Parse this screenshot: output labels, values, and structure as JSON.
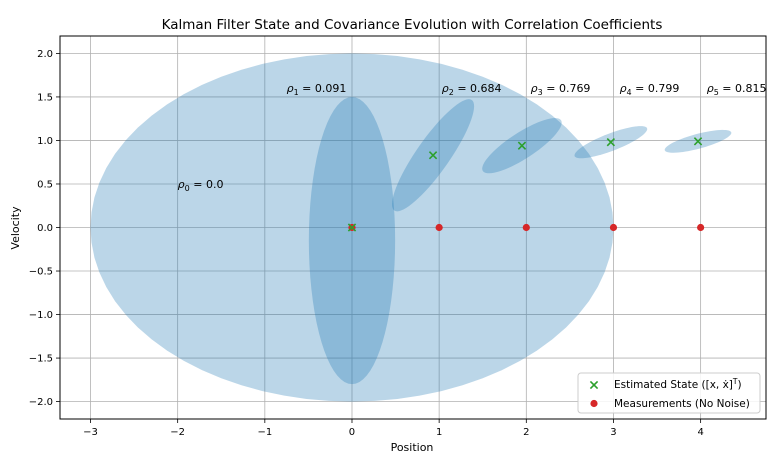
{
  "chart_data": {
    "type": "scatter",
    "title": "Kalman Filter State and Covariance Evolution with Correlation Coefficients",
    "xlabel": "Position",
    "ylabel": "Velocity",
    "xlim": [
      -3.35,
      4.75
    ],
    "ylim": [
      -2.2,
      2.2
    ],
    "xticks": [
      -3,
      -2,
      -1,
      0,
      1,
      2,
      3,
      4
    ],
    "yticks": [
      -2.0,
      -1.5,
      -1.0,
      -0.5,
      0.0,
      0.5,
      1.0,
      1.5,
      2.0
    ],
    "xtick_labels": [
      "−3",
      "−2",
      "−1",
      "0",
      "1",
      "2",
      "3",
      "4"
    ],
    "ytick_labels": [
      "−2.0",
      "−1.5",
      "−1.0",
      "−0.5",
      "0.0",
      "0.5",
      "1.0",
      "1.5",
      "2.0"
    ],
    "grid": true,
    "legend_position": "bottom-right",
    "colors": {
      "estimate": "#2ca02c",
      "measurement": "#d62728",
      "ellipse": "#1f77b4"
    },
    "series": [
      {
        "name": "Estimated State ([x, ẋ]ᵀ)",
        "legend_label": "Estimated State ([x, ẋ]",
        "legend_sup": "T",
        "legend_close": ")",
        "marker": "x",
        "x": [
          0.0,
          0.93,
          1.95,
          2.97,
          3.97
        ],
        "y": [
          0.0,
          0.83,
          0.94,
          0.98,
          0.99
        ]
      },
      {
        "name": "Measurements (No Noise)",
        "legend_label": "Measurements (No Noise)",
        "marker": "o",
        "x": [
          0,
          1,
          2,
          3,
          4
        ],
        "y": [
          0,
          0,
          0,
          0,
          0
        ]
      }
    ],
    "covariance_ellipses": [
      {
        "cx": 0.0,
        "cy": 0.0,
        "width": 6.0,
        "height": 4.0,
        "angle": 0
      },
      {
        "cx": 0.0,
        "cy": -0.15,
        "width": 0.99,
        "height": 3.3,
        "angle": 0
      },
      {
        "cx": 0.93,
        "cy": 0.83,
        "width": 1.55,
        "height": 0.38,
        "angle": 55
      },
      {
        "cx": 1.95,
        "cy": 0.94,
        "width": 1.07,
        "height": 0.3,
        "angle": 33
      },
      {
        "cx": 2.97,
        "cy": 0.98,
        "width": 0.89,
        "height": 0.2,
        "angle": 21
      },
      {
        "cx": 3.97,
        "cy": 0.99,
        "width": 0.79,
        "height": 0.17,
        "angle": 15
      }
    ],
    "annotations": [
      {
        "sym": "ρ",
        "sub": "0",
        "text": " = 0.0",
        "x": -2.0,
        "y": 0.5
      },
      {
        "sym": "ρ",
        "sub": "1",
        "text": " = 0.091",
        "x": -0.75,
        "y": 1.6
      },
      {
        "sym": "ρ",
        "sub": "2",
        "text": " = 0.684",
        "x": 1.03,
        "y": 1.6
      },
      {
        "sym": "ρ",
        "sub": "3",
        "text": " = 0.769",
        "x": 2.05,
        "y": 1.6
      },
      {
        "sym": "ρ",
        "sub": "4",
        "text": " = 0.799",
        "x": 3.07,
        "y": 1.6
      },
      {
        "sym": "ρ",
        "sub": "5",
        "text": " = 0.815",
        "x": 4.07,
        "y": 1.6
      }
    ]
  }
}
